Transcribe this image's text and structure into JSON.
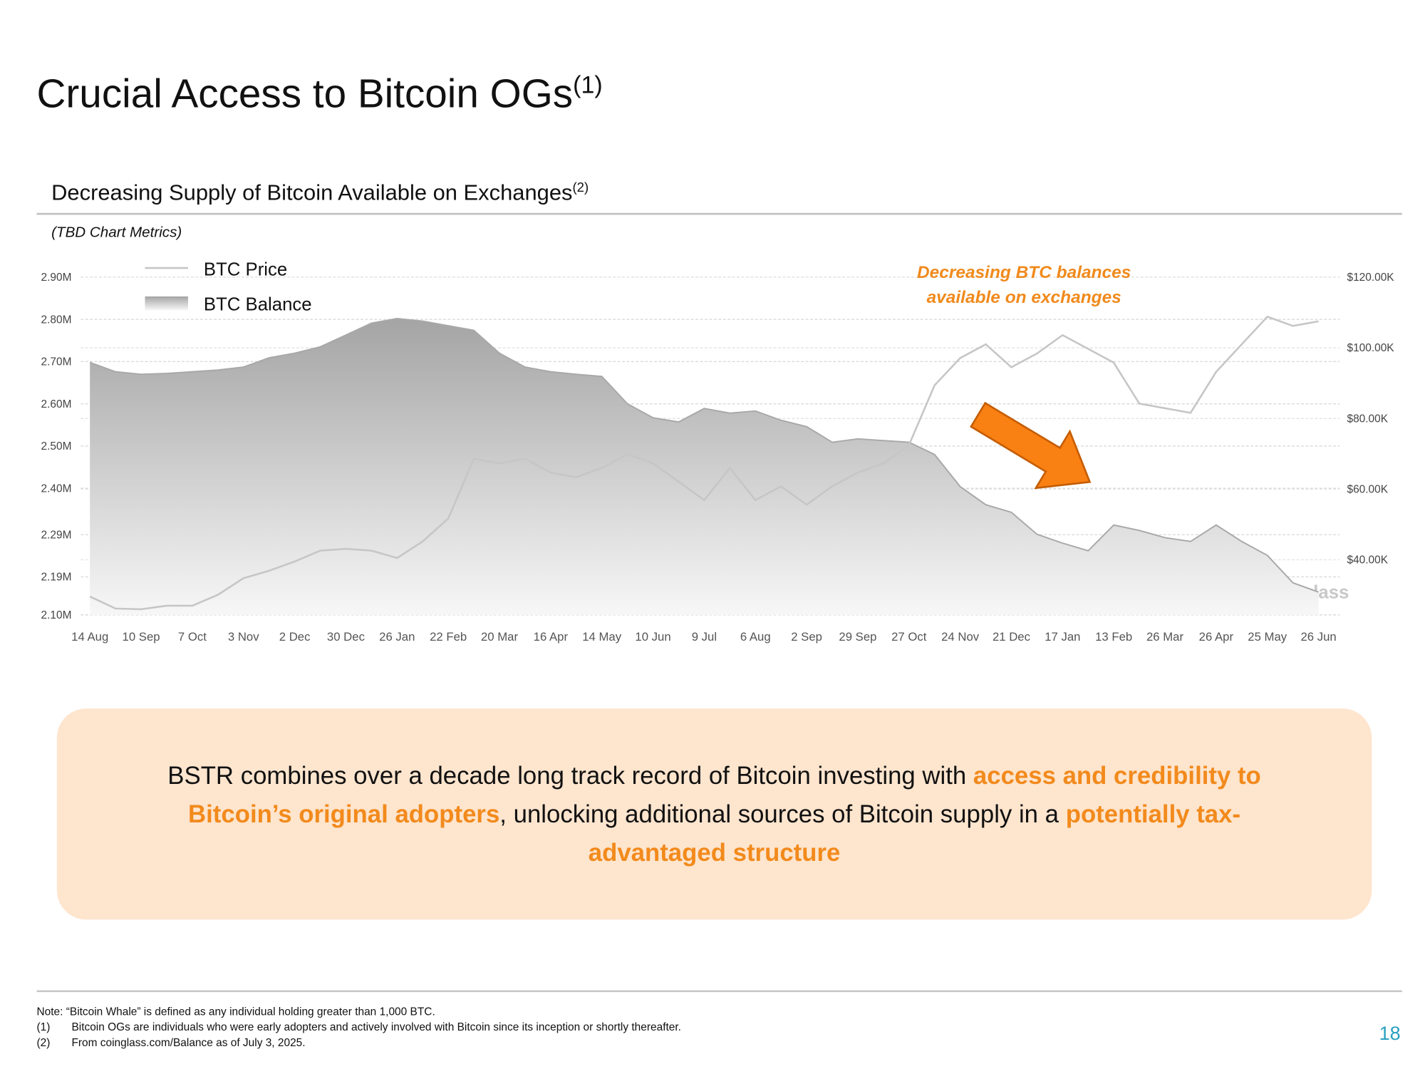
{
  "header": {
    "title": "Crucial Access to Bitcoin OGs",
    "title_note": "(1)"
  },
  "chart_heading": {
    "title": "Decreasing Supply of Bitcoin Available on Exchanges",
    "title_note": "(2)",
    "subtitle": "(TBD Chart Metrics)"
  },
  "chart_data": {
    "type": "combo",
    "categories": [
      "14 Aug",
      null,
      "10 Sep",
      null,
      "7 Oct",
      null,
      "3 Nov",
      null,
      "2 Dec",
      null,
      "30 Dec",
      null,
      "26 Jan",
      null,
      "22 Feb",
      null,
      "20 Mar",
      null,
      "16 Apr",
      null,
      "14 May",
      null,
      "10 Jun",
      null,
      "9 Jul",
      null,
      "6 Aug",
      null,
      "2 Sep",
      null,
      "29 Sep",
      null,
      "27 Oct",
      null,
      "24 Nov",
      null,
      "21 Dec",
      null,
      "17 Jan",
      null,
      "13 Feb",
      null,
      "26 Mar",
      null,
      "26 Apr",
      null,
      "25 May",
      null,
      "26 Jun"
    ],
    "series": [
      {
        "name": "BTC Balance",
        "type": "area",
        "color": "#a8a8a8",
        "values": [
          2698000,
          2676000,
          2670000,
          2672000,
          2676000,
          2680000,
          2687000,
          2709000,
          2720000,
          2735000,
          2763000,
          2791000,
          2802000,
          2796000,
          2785000,
          2774000,
          2720000,
          2687000,
          2676000,
          2670000,
          2665000,
          2600000,
          2567000,
          2557000,
          2589000,
          2578000,
          2583000,
          2561000,
          2546000,
          2509000,
          2517000,
          2513000,
          2509000,
          2480000,
          2404000,
          2361000,
          2343000,
          2291000,
          2270000,
          2252000,
          2313000,
          2300000,
          2283000,
          2274000,
          2313000,
          2274000,
          2241000,
          2176000,
          2154000
        ]
      },
      {
        "name": "BTC Price",
        "type": "line",
        "axis": "y2",
        "color": "#c6c6c6",
        "values": [
          29600,
          26200,
          26000,
          27000,
          27000,
          30100,
          34800,
          36900,
          39500,
          42600,
          43100,
          42600,
          40500,
          45200,
          51700,
          68600,
          67300,
          68600,
          64700,
          63400,
          66000,
          69900,
          67300,
          62100,
          56900,
          66000,
          56900,
          60800,
          55600,
          60800,
          64700,
          67300,
          72500,
          89400,
          97100,
          101000,
          94500,
          98400,
          103600,
          99700,
          95800,
          84200,
          82900,
          81600,
          93200,
          101000,
          108800,
          106200,
          107500
        ]
      }
    ],
    "ylim": [
      2100000,
      2900000
    ],
    "yticks": [
      {
        "value": 2100000,
        "label": "2.10M"
      },
      {
        "value": 2190000,
        "label": "2.19M"
      },
      {
        "value": 2290000,
        "label": "2.29M"
      },
      {
        "value": 2400000,
        "label": "2.40M"
      },
      {
        "value": 2500000,
        "label": "2.50M"
      },
      {
        "value": 2600000,
        "label": "2.60M"
      },
      {
        "value": 2700000,
        "label": "2.70M"
      },
      {
        "value": 2800000,
        "label": "2.80M"
      },
      {
        "value": 2900000,
        "label": "2.90M"
      }
    ],
    "y2lim": [
      24400,
      120000
    ],
    "y2ticks": [
      {
        "value": 40000,
        "label": "$40.00K"
      },
      {
        "value": 60000,
        "label": "$60.00K"
      },
      {
        "value": 80000,
        "label": "$80.00K"
      },
      {
        "value": 100000,
        "label": "$100.00K"
      },
      {
        "value": 120000,
        "label": "$120.00K"
      }
    ],
    "grid": true,
    "legend": "upper left",
    "annotation": [
      "Decreasing BTC balances",
      "available on exchanges"
    ],
    "watermark": "coinglass"
  },
  "callout": {
    "segments": [
      {
        "text": "BSTR combines over a decade long track record of Bitcoin investing with ",
        "highlight": false
      },
      {
        "text": "access and credibility to Bitcoin’s original adopters",
        "highlight": true
      },
      {
        "text": ", unlocking additional sources of Bitcoin supply in a ",
        "highlight": false
      },
      {
        "text": "potentially tax-advantaged structure",
        "highlight": true
      }
    ]
  },
  "footnotes": {
    "note": "Note: “Bitcoin Whale” is defined as any individual holding greater than 1,000 BTC.",
    "items": [
      {
        "marker": "(1)",
        "text": "Bitcoin OGs are individuals who were early adopters and actively involved with Bitcoin since its inception or shortly thereafter."
      },
      {
        "marker": "(2)",
        "text": "From coinglass.com/Balance as of July 3, 2025."
      }
    ]
  },
  "page_number": "18"
}
